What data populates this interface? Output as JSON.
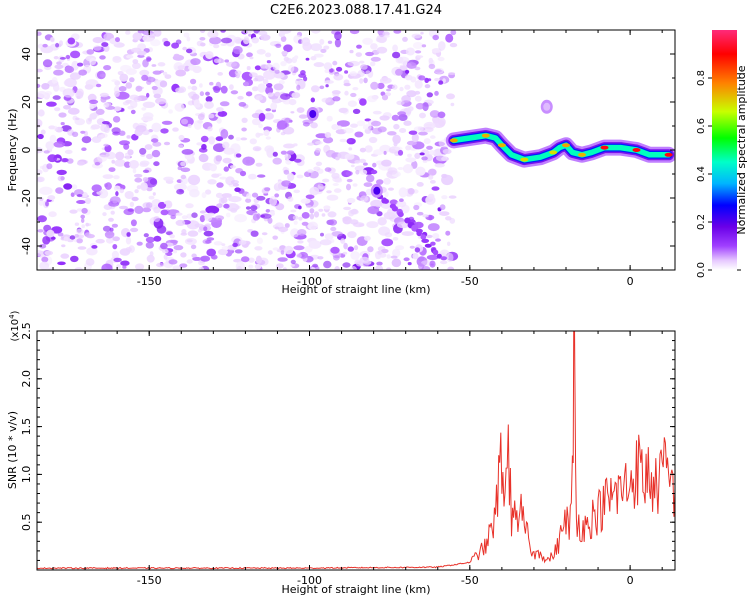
{
  "title": "C2E6.2023.088.17.41.G24",
  "chart_data": [
    {
      "type": "heatmap",
      "xlabel": "Height of straight line (km)",
      "ylabel": "Frequency (Hz)",
      "xlim": [
        -185,
        14
      ],
      "ylim": [
        -50,
        50
      ],
      "xticks": [
        -150,
        -100,
        -50,
        0
      ],
      "yticks": [
        -40,
        -20,
        0,
        20,
        40
      ],
      "grid": false,
      "colorbar": {
        "label": "Normalized spectral amplitude",
        "range": [
          0.0,
          1.0
        ],
        "ticks": [
          "0.0",
          "0.2",
          "0.4",
          "0.6",
          "0.8"
        ],
        "colormap": [
          "#ffffff",
          "#e6c8ff",
          "#a040ff",
          "#6a00e8",
          "#0000ff",
          "#00b4ff",
          "#00ffc8",
          "#00ff00",
          "#c8ff00",
          "#ff8000",
          "#ff0000",
          "#ff2a7a"
        ]
      },
      "noise_region_x": [
        -185,
        -55
      ],
      "signal_track": [
        {
          "x": -55,
          "y": 4
        },
        {
          "x": -50,
          "y": 5
        },
        {
          "x": -45,
          "y": 6
        },
        {
          "x": -42,
          "y": 5
        },
        {
          "x": -40,
          "y": 2
        },
        {
          "x": -37,
          "y": -2
        },
        {
          "x": -33,
          "y": -4
        },
        {
          "x": -28,
          "y": -3
        },
        {
          "x": -24,
          "y": -1
        },
        {
          "x": -22,
          "y": 1
        },
        {
          "x": -20,
          "y": 2
        },
        {
          "x": -18,
          "y": -1
        },
        {
          "x": -15,
          "y": -2
        },
        {
          "x": -12,
          "y": -1
        },
        {
          "x": -8,
          "y": 1
        },
        {
          "x": -3,
          "y": 1
        },
        {
          "x": 2,
          "y": 0
        },
        {
          "x": 6,
          "y": -2
        },
        {
          "x": 12,
          "y": -2
        }
      ],
      "diagonal_streak": [
        {
          "x": -80,
          "y": -18
        },
        {
          "x": -72,
          "y": -26
        },
        {
          "x": -66,
          "y": -34
        },
        {
          "x": -62,
          "y": -40
        },
        {
          "x": -58,
          "y": -47
        }
      ],
      "spots": [
        {
          "x": -99,
          "y": 15
        },
        {
          "x": -79,
          "y": -17
        },
        {
          "x": -26,
          "y": 18
        }
      ]
    },
    {
      "type": "line",
      "xlabel": "Height of straight line (km)",
      "ylabel": "SNR (10 * v/v)",
      "ymultiplier": "(x10",
      "ymultiplier_exp": "4",
      "xlim": [
        -185,
        14
      ],
      "ylim": [
        0,
        2.5
      ],
      "xticks": [
        -150,
        -100,
        -50,
        0
      ],
      "yticks": [
        0.5,
        1.0,
        1.5,
        2.0,
        2.5
      ],
      "color": "#e8322a",
      "grid": false,
      "series": [
        {
          "x": [
            -185,
            -140,
            -100,
            -60,
            -50,
            -45,
            -42,
            -40,
            -39,
            -38,
            -37,
            -36,
            -35,
            -34,
            -32,
            -30,
            -28,
            -26,
            -24,
            -22,
            -20,
            -19,
            -18,
            -17.5,
            -17,
            -16.5,
            -16,
            -14,
            -12,
            -10,
            -8,
            -6,
            -4,
            -2,
            0,
            2,
            4,
            6,
            8,
            10,
            12,
            14
          ],
          "y": [
            0.02,
            0.02,
            0.02,
            0.03,
            0.08,
            0.25,
            0.55,
            1.25,
            0.7,
            1.32,
            0.5,
            0.9,
            0.3,
            0.6,
            0.35,
            0.15,
            0.2,
            0.1,
            0.15,
            0.3,
            0.6,
            0.35,
            0.9,
            2.55,
            0.9,
            0.35,
            0.5,
            0.45,
            0.55,
            0.6,
            0.7,
            0.75,
            0.8,
            0.85,
            0.9,
            1.1,
            0.95,
            1.0,
            0.85,
            1.05,
            0.95,
            0.85
          ]
        }
      ]
    }
  ]
}
